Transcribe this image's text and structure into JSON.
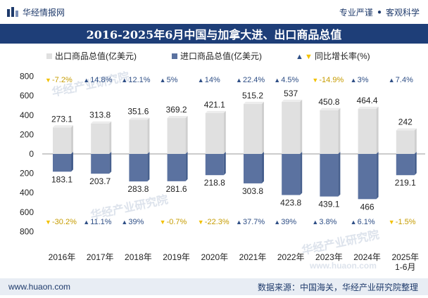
{
  "header": {
    "brand": "华经情报网",
    "tagline_left": "专业严谨",
    "tagline_right": "客观科学"
  },
  "title": "2016-2025年6月中国与加拿大进、出口商品总值",
  "footer": {
    "site": "www.huaon.com",
    "source": "数据来源：中国海关，华经产业研究院整理"
  },
  "watermarks": [
    "华经产业研究院",
    "华经产业研究院",
    "华经产业研究院",
    "www.huaon.com"
  ],
  "colors": {
    "export": "#e0e0e0",
    "import": "#5b72a0",
    "up": "#2f4f86",
    "down": "#f2c100",
    "title_bg": "#1e3e78"
  },
  "chart_data": {
    "type": "bar",
    "categories": [
      "2016年",
      "2017年",
      "2018年",
      "2019年",
      "2020年",
      "2021年",
      "2022年",
      "2023年",
      "2024年",
      "2025年\n1-6月"
    ],
    "series": [
      {
        "name": "出口商品总值(亿美元)",
        "values": [
          273.1,
          313.8,
          351.6,
          369.2,
          421.1,
          515.2,
          537,
          450.8,
          464.4,
          242
        ]
      },
      {
        "name": "进口商品总值(亿美元)",
        "values": [
          183.1,
          203.7,
          283.8,
          281.6,
          218.8,
          303.8,
          423.8,
          439.1,
          466,
          219.1
        ]
      }
    ],
    "growth_legend": "同比增长率(%)",
    "export_growth": [
      "-7.2%",
      "14.8%",
      "12.1%",
      "5%",
      "14%",
      "22.4%",
      "4.5%",
      "-14.9%",
      "3%",
      "7.4%"
    ],
    "import_growth": [
      "-30.2%",
      "11.1%",
      "39%",
      "-0.7%",
      "-22.3%",
      "37.7%",
      "39%",
      "3.8%",
      "6.1%",
      "-1.5%"
    ],
    "ylim": [
      -800,
      800
    ],
    "yticks": [
      800,
      600,
      400,
      200,
      0,
      200,
      400,
      600,
      800
    ],
    "legend_position": "top",
    "grid": false
  }
}
